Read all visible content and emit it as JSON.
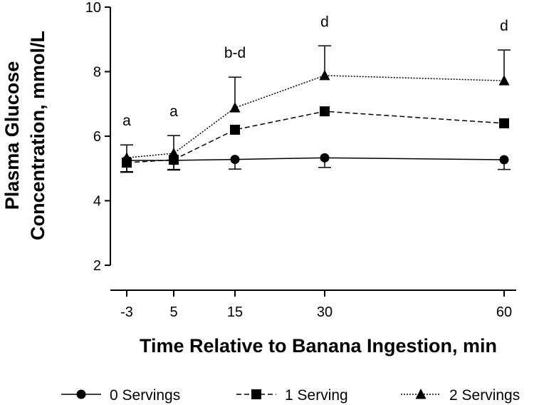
{
  "chart_data": {
    "type": "line",
    "title": "",
    "xlabel": "Time Relative to Banana Ingestion, min",
    "ylabel_line1": "Plasma Glucose",
    "ylabel_line2": "Concentration, mmol/L",
    "ylim": [
      2,
      10
    ],
    "y_ticks": [
      "2",
      "4",
      "6",
      "8",
      "10"
    ],
    "x": [
      -3,
      5,
      15,
      30,
      60
    ],
    "x_ticks": [
      "-3",
      "5",
      "15",
      "30",
      "60"
    ],
    "series": [
      {
        "name": "0 Servings",
        "marker": "circle",
        "dash": "solid",
        "values": [
          5.25,
          5.25,
          5.28,
          5.33,
          5.27
        ],
        "error": [
          0.35,
          0.3,
          0.3,
          0.3,
          0.3
        ],
        "error_dir": "down"
      },
      {
        "name": "1 Serving",
        "marker": "square",
        "dash": "dashed",
        "values": [
          5.18,
          5.27,
          6.2,
          6.77,
          6.4
        ],
        "error": [
          0.3,
          0.3,
          0,
          0,
          0
        ],
        "error_dir": "down"
      },
      {
        "name": "2 Servings",
        "marker": "triangle",
        "dash": "dotted",
        "values": [
          5.33,
          5.47,
          6.88,
          7.88,
          7.72
        ],
        "error": [
          0.4,
          0.55,
          0.95,
          0.92,
          0.95
        ],
        "error_dir": "up"
      }
    ],
    "annotations": [
      {
        "x": -3,
        "text": "a"
      },
      {
        "x": 5,
        "text": "a"
      },
      {
        "x": 15,
        "text": "b-d"
      },
      {
        "x": 30,
        "text": "d"
      },
      {
        "x": 60,
        "text": "d"
      }
    ],
    "legend_position": "bottom"
  }
}
